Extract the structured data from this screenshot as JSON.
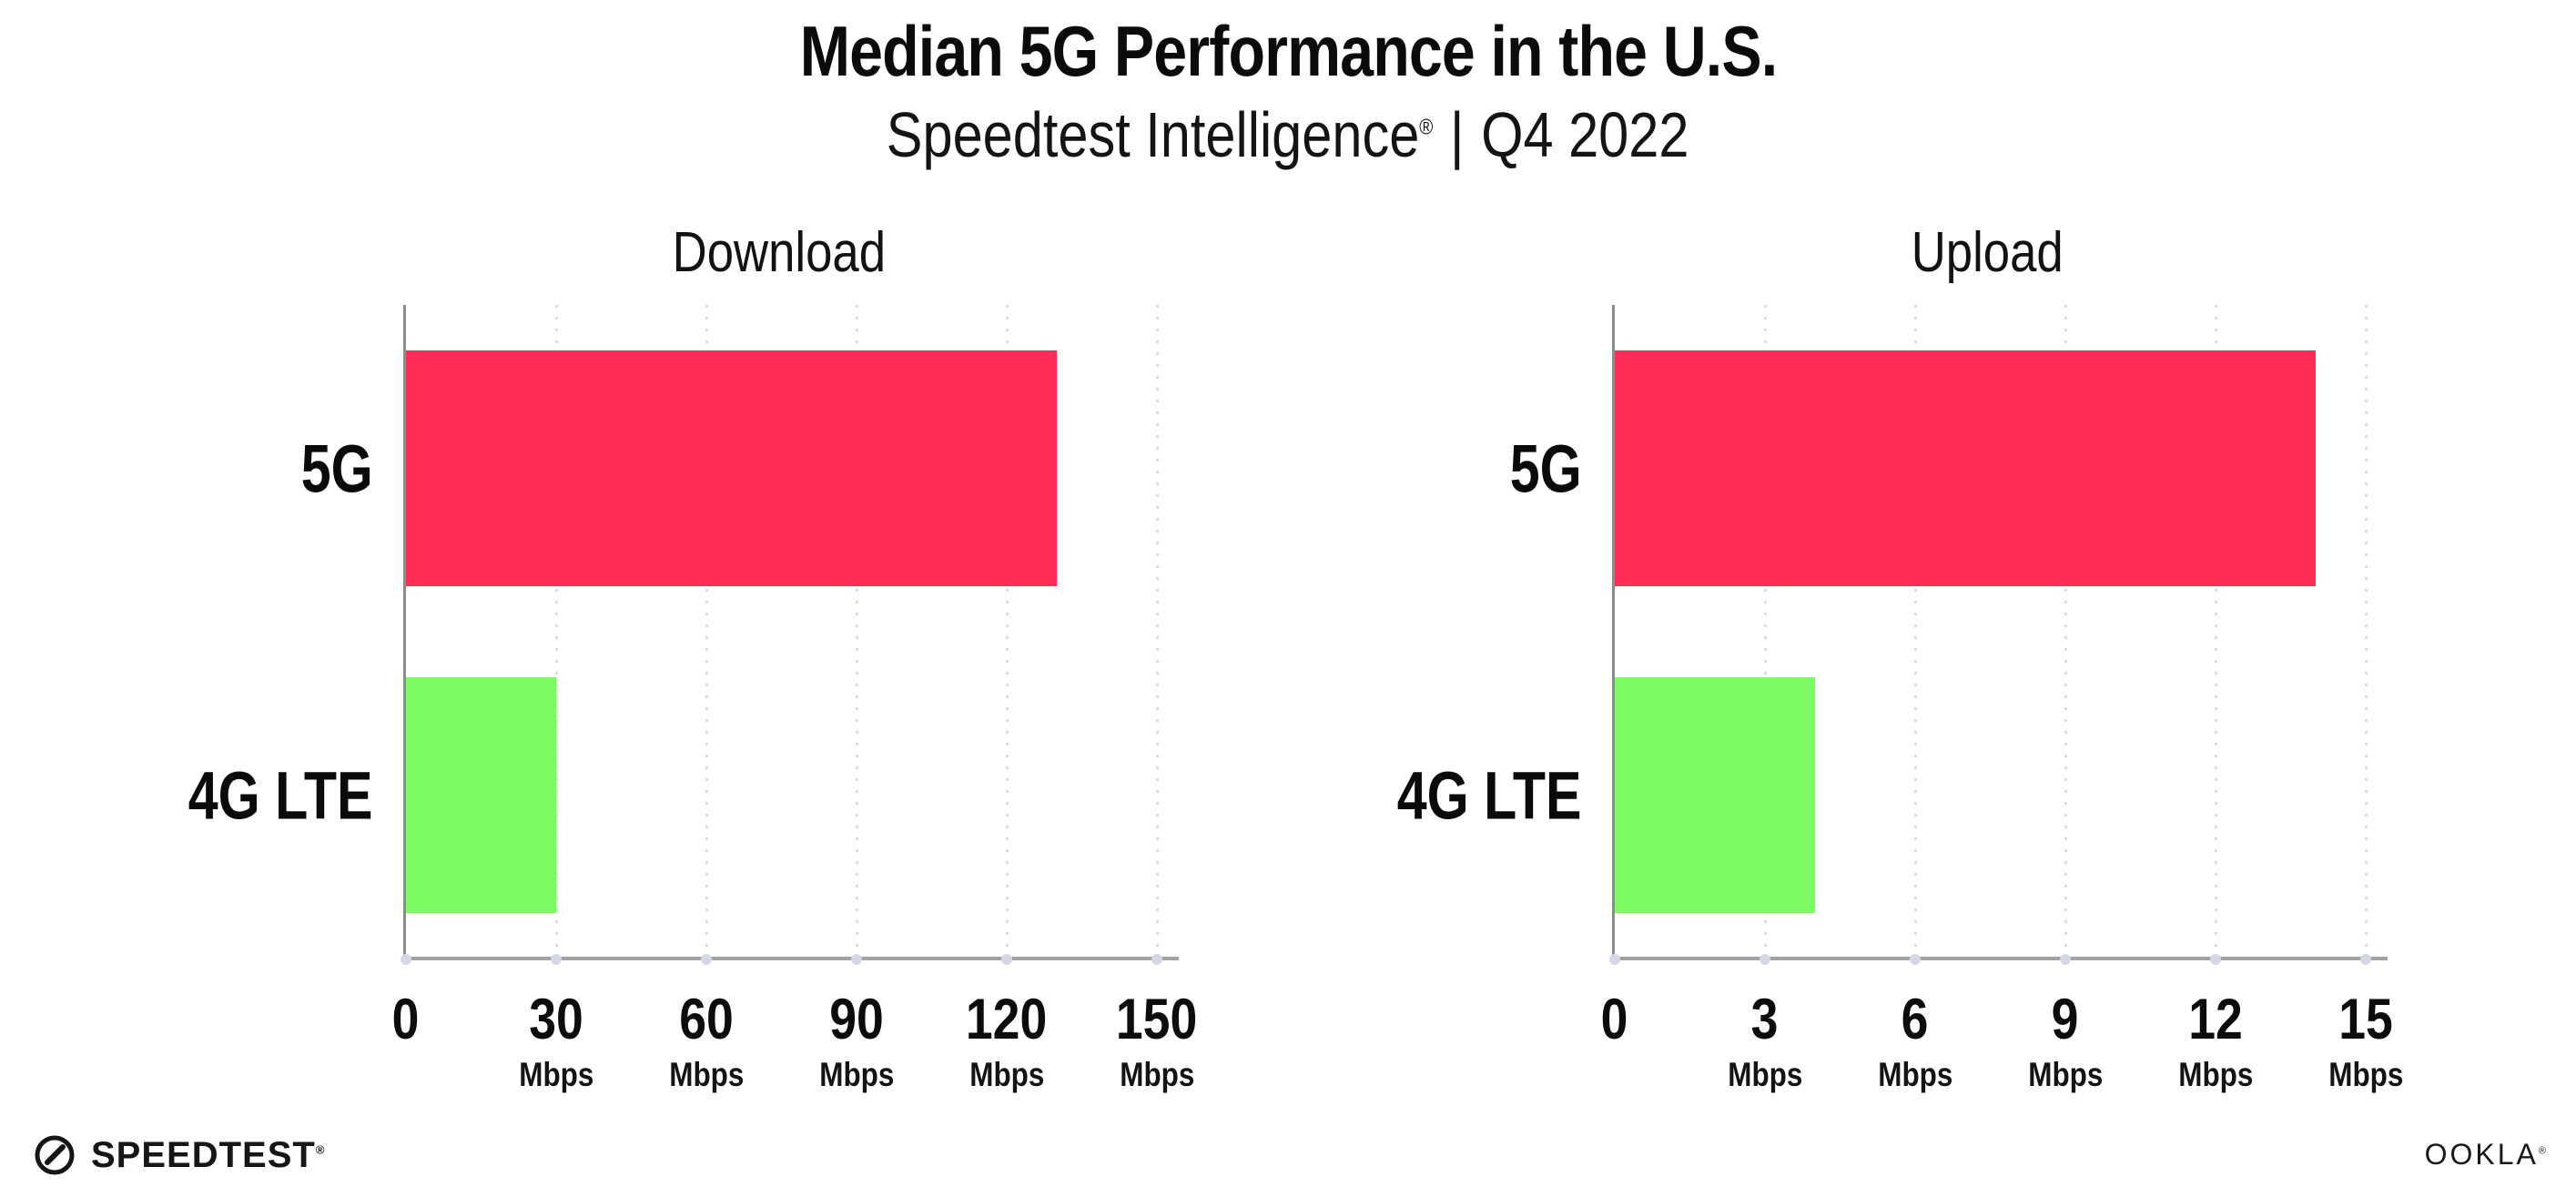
{
  "header": {
    "title": "Median 5G Performance in the U.S.",
    "subtitle": {
      "brand": "Speedtest Intelligence",
      "registered_mark": "®",
      "separator": "|",
      "period": "Q4 2022"
    }
  },
  "chart_data": [
    {
      "type": "bar",
      "orientation": "horizontal",
      "title": "Download",
      "categories": [
        "5G",
        "4G LTE"
      ],
      "values": [
        130,
        30
      ],
      "unit": "Mbps",
      "xlim": [
        0,
        150
      ],
      "xticks": [
        0,
        30,
        60,
        90,
        120,
        150
      ],
      "tick_unit_label": "Mbps",
      "bar_colors": [
        "#FF2E56",
        "#7EFB62"
      ],
      "grid": "dotted-vertical",
      "legend": "none"
    },
    {
      "type": "bar",
      "orientation": "horizontal",
      "title": "Upload",
      "categories": [
        "5G",
        "4G LTE"
      ],
      "values": [
        14,
        4
      ],
      "unit": "Mbps",
      "xlim": [
        0,
        15
      ],
      "xticks": [
        0,
        3,
        6,
        9,
        12,
        15
      ],
      "tick_unit_label": "Mbps",
      "bar_colors": [
        "#FF2E56",
        "#7EFB62"
      ],
      "grid": "dotted-vertical",
      "legend": "none"
    }
  ],
  "footer": {
    "speedtest_wordmark": "SPEEDTEST",
    "speedtest_mark": "®",
    "speedtest_icon": "speedometer-gauge-icon",
    "ookla_wordmark": "OOKLA",
    "ookla_mark": "®"
  },
  "colors": {
    "bar_5g": "#FF2E56",
    "bar_4g_lte": "#7EFB62",
    "axis_spine": "#8D8D8F",
    "x_axis_line": "#A2A2A4",
    "gridline_dots": "#DCDCE6",
    "axis_tick_dots": "#D3D8E6",
    "text": "#111111",
    "background": "#FFFFFF"
  }
}
